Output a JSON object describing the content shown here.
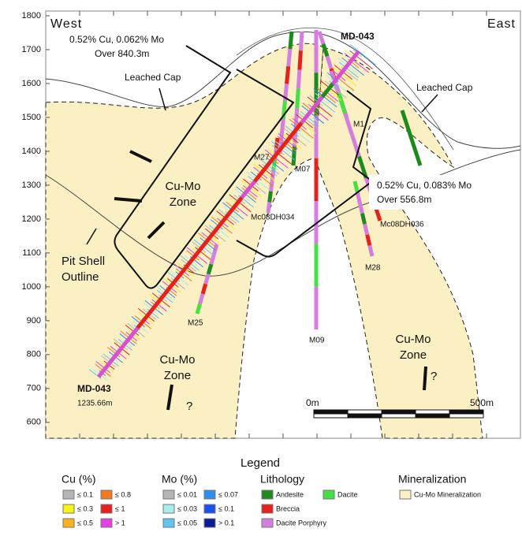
{
  "axis": {
    "ylim": [
      553,
      1814
    ],
    "yticks": [
      1800,
      1700,
      1600,
      1500,
      1400,
      1300,
      1200,
      1100,
      1000,
      900,
      800,
      700,
      600
    ]
  },
  "section": {
    "west": "West",
    "east": "East"
  },
  "callout_left": [
    "0.52% Cu, 0.062% Mo",
    "Over 840.3m"
  ],
  "callout_right": [
    "0.52% Cu, 0.083% Mo",
    "Over 556.8m"
  ],
  "hole_main": {
    "top_label": "MD-043",
    "bottom_label": "MD-043",
    "length": "1235.66m"
  },
  "labels": {
    "leached_cap_left": "Leached Cap",
    "leached_cap_right": "Leached Cap",
    "zone_center": [
      "Cu-Mo",
      "Zone"
    ],
    "zone_bottom_left": [
      "Cu-Mo",
      "Zone"
    ],
    "zone_bottom_right": [
      "Cu-Mo",
      "Zone"
    ],
    "pit_shell": [
      "Pit Shell",
      "Outline"
    ],
    "question_left": "?",
    "question_right": "?"
  },
  "holes": [
    "M1",
    "M27",
    "M07",
    "Mc08DH034",
    "Mc08DH036",
    "M28",
    "M25",
    "M09"
  ],
  "scale": {
    "start": "0m",
    "end": "500m"
  },
  "legend": {
    "title": "Legend",
    "cu": {
      "title": "Cu (%)",
      "items": [
        {
          "label": "≤ 0.1",
          "color": "#b5b5b5"
        },
        {
          "label": "≤ 0.3",
          "color": "#f6f21c"
        },
        {
          "label": "≤ 0.5",
          "color": "#f7b21c"
        },
        {
          "label": "≤ 0.8",
          "color": "#f47a20"
        },
        {
          "label": "≤ 1",
          "color": "#e4211c"
        },
        {
          "label": "> 1",
          "color": "#e43fe0"
        }
      ]
    },
    "mo": {
      "title": "Mo (%)",
      "items": [
        {
          "label": "≤ 0.01",
          "color": "#b5b5b5"
        },
        {
          "label": "≤ 0.03",
          "color": "#a8ecec"
        },
        {
          "label": "≤ 0.05",
          "color": "#5fc4ef"
        },
        {
          "label": "≤ 0.07",
          "color": "#2b8ff0"
        },
        {
          "label": "≤ 0.1",
          "color": "#1a4ff0"
        },
        {
          "label": "> 0.1",
          "color": "#0a1a9a"
        }
      ]
    },
    "lithology": {
      "title": "Lithology",
      "items": [
        {
          "label": "Andesite",
          "color": "#1e8a1e"
        },
        {
          "label": "Breccia",
          "color": "#e4211c"
        },
        {
          "label": "Dacite Porphyry",
          "color": "#d47ee0"
        },
        {
          "label": "Dacite",
          "color": "#44e044"
        }
      ]
    },
    "mineralization": {
      "title": "Mineralization",
      "items": [
        {
          "label": "Cu-Mo Mineralization",
          "color": "#fbefc4"
        }
      ]
    }
  }
}
